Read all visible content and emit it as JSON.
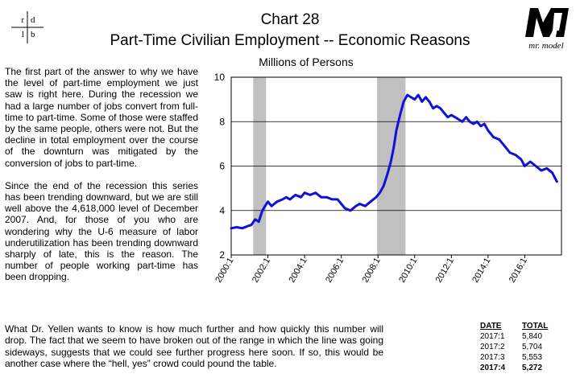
{
  "logos": {
    "left": {
      "letters": [
        "r",
        "d",
        "l",
        "b"
      ]
    },
    "right": {
      "caption": "mr. model",
      "mark": "M"
    }
  },
  "header": {
    "title": "Chart 28",
    "subtitle": "Part-Time Civilian Employment -- Economic Reasons"
  },
  "commentary": {
    "paragraph_1": "The first part of the answer to why we have the level of part-time employment we just saw is right here. During the recession we had a large number of jobs convert from full-time to part-time. Some of those were staffed by the same people, others were not. But the decline in total employment over the course of the downturn was mitigated by the conversion of jobs to part-time.",
    "paragraph_2": "Since the end of the recession this series has been trending downward, but we are still well above the 4,618,000 level of December 2007. And, for those of you who are wondering why the U-6 measure of labor underutilization has been trending downward sharply of late, this is the reason. The number of people working part-time has been dropping.",
    "bottom": "What Dr. Yellen wants to know is how much further and how quickly this number will drop. The fact that we seem to have broken out of the range in which the line was going sideways, suggests that we could see further progress here soon. If so, this would be another case where the “hell, yes” crowd could pound the table."
  },
  "table": {
    "headers": {
      "date": "DATE",
      "total": "TOTAL"
    },
    "rows": [
      {
        "date": "2017:1",
        "total": "5,840"
      },
      {
        "date": "2017:2",
        "total": "5,704"
      },
      {
        "date": "2017:3",
        "total": "5,553"
      },
      {
        "date": "2017:4",
        "total": "5,272"
      }
    ]
  },
  "chart_data": {
    "type": "line",
    "title": "Millions of Persons",
    "xlabel": "",
    "ylabel": "",
    "ylim": [
      2,
      10
    ],
    "xlim": [
      2000.0,
      2018.0
    ],
    "yticks": [
      2,
      4,
      6,
      8,
      10
    ],
    "xticks": [
      "2000:1",
      "2002:1",
      "2004:1",
      "2006:1",
      "2008:1",
      "2010:1",
      "2012:1",
      "2014:1",
      "2016:1"
    ],
    "grid": true,
    "legend": "none",
    "line_color": "#1010d8",
    "shade_color": "#c0c0c0",
    "recessions": [
      [
        2001.2,
        2001.9
      ],
      [
        2007.95,
        2009.5
      ]
    ],
    "series": [
      {
        "x": [
          2000.0,
          2000.3,
          2000.6,
          2000.9,
          2001.1,
          2001.3,
          2001.5,
          2001.7,
          2001.85,
          2002.0,
          2002.2,
          2002.5,
          2002.8,
          2003.0,
          2003.2,
          2003.5,
          2003.8,
          2004.0,
          2004.3,
          2004.6,
          2004.9,
          2005.2,
          2005.5,
          2005.8,
          2006.0,
          2006.2,
          2006.5,
          2006.8,
          2007.0,
          2007.3,
          2007.6,
          2007.9,
          2008.1,
          2008.3,
          2008.5,
          2008.7,
          2008.85,
          2009.0,
          2009.2,
          2009.4,
          2009.6,
          2009.8,
          2010.0,
          2010.2,
          2010.4,
          2010.6,
          2010.8,
          2011.0,
          2011.2,
          2011.4,
          2011.6,
          2011.8,
          2012.0,
          2012.2,
          2012.4,
          2012.6,
          2012.8,
          2013.0,
          2013.2,
          2013.4,
          2013.6,
          2013.8,
          2014.0,
          2014.3,
          2014.6,
          2014.9,
          2015.2,
          2015.5,
          2015.8,
          2016.0,
          2016.3,
          2016.6,
          2016.9,
          2017.2,
          2017.5,
          2017.75
        ],
        "y": [
          3.2,
          3.25,
          3.2,
          3.3,
          3.35,
          3.6,
          3.5,
          4.0,
          4.2,
          4.4,
          4.2,
          4.4,
          4.5,
          4.6,
          4.5,
          4.7,
          4.6,
          4.8,
          4.7,
          4.8,
          4.6,
          4.6,
          4.5,
          4.5,
          4.3,
          4.1,
          4.0,
          4.2,
          4.3,
          4.2,
          4.4,
          4.6,
          4.8,
          5.1,
          5.6,
          6.2,
          6.8,
          7.6,
          8.3,
          8.9,
          9.2,
          9.1,
          9.0,
          9.2,
          8.9,
          9.1,
          8.9,
          8.6,
          8.7,
          8.6,
          8.4,
          8.2,
          8.3,
          8.2,
          8.1,
          8.0,
          8.2,
          8.0,
          7.9,
          8.0,
          7.8,
          7.9,
          7.6,
          7.3,
          7.2,
          6.9,
          6.6,
          6.5,
          6.3,
          6.0,
          6.2,
          6.0,
          5.8,
          5.9,
          5.7,
          5.3
        ]
      }
    ]
  }
}
